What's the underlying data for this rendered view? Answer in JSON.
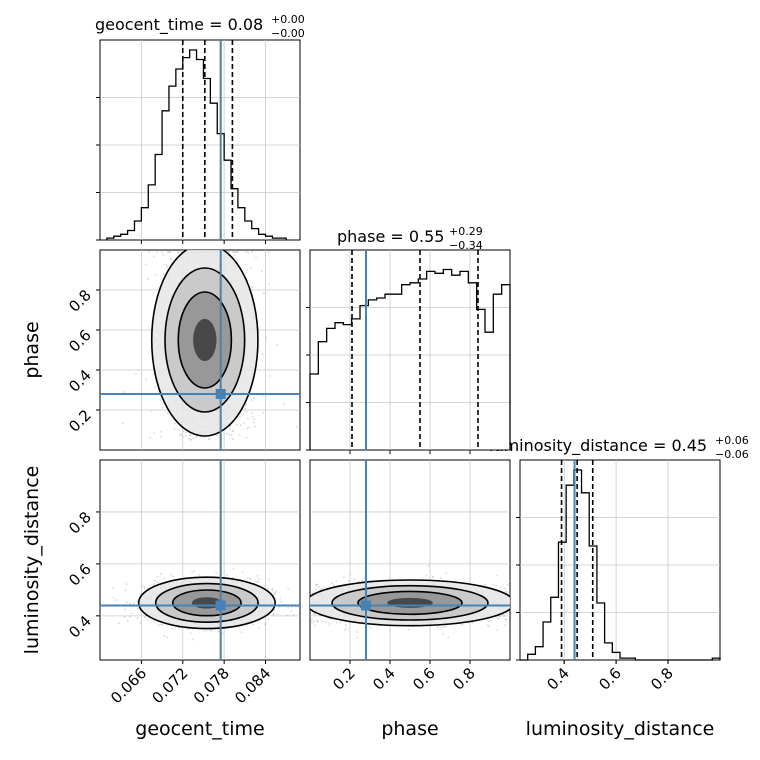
{
  "chart_data": {
    "type": "corner",
    "parameters": [
      {
        "name": "geocent_time",
        "xlabel": "geocent_time",
        "range": [
          0.06,
          0.089
        ],
        "ticks": [
          0.066,
          0.072,
          0.078,
          0.084
        ],
        "tick_labels": [
          "0.066",
          "0.072",
          "0.078",
          "0.084"
        ],
        "title": {
          "text": "geocent_time = 0.08",
          "sup": "+0.00",
          "sub": "−0.00"
        },
        "quantiles": [
          0.072,
          0.0752,
          0.0792
        ],
        "truth": 0.0775,
        "hist_edges_range": [
          0.061,
          0.087
        ],
        "hist": [
          0.01,
          0.02,
          0.03,
          0.05,
          0.1,
          0.17,
          0.29,
          0.45,
          0.68,
          0.81,
          0.9,
          0.96,
          1.0,
          0.95,
          0.85,
          0.72,
          0.56,
          0.42,
          0.27,
          0.17,
          0.1,
          0.06,
          0.03,
          0.02,
          0.01,
          0.01
        ]
      },
      {
        "name": "phase",
        "xlabel": "phase",
        "ylabel": "phase",
        "range": [
          0.0,
          1.0
        ],
        "ticks": [
          0.2,
          0.4,
          0.6,
          0.8
        ],
        "tick_labels": [
          "0.2",
          "0.4",
          "0.6",
          "0.8"
        ],
        "title": {
          "text": "phase = 0.55",
          "sup": "+0.29",
          "sub": "−0.34"
        },
        "quantiles": [
          0.21,
          0.55,
          0.84
        ],
        "truth": 0.28,
        "hist_edges_range": [
          0.0,
          1.0
        ],
        "hist": [
          0.4,
          0.57,
          0.64,
          0.67,
          0.66,
          0.69,
          0.76,
          0.79,
          0.8,
          0.82,
          0.82,
          0.87,
          0.88,
          0.9,
          0.94,
          0.93,
          0.95,
          0.92,
          0.94,
          0.88,
          0.74,
          0.62,
          0.82,
          0.87
        ]
      },
      {
        "name": "luminosity_distance",
        "xlabel": "luminosity_distance",
        "ylabel": "luminosity_distance",
        "range": [
          0.23,
          1.0
        ],
        "ticks": [
          0.4,
          0.6,
          0.8
        ],
        "tick_labels": [
          "0.4",
          "0.6",
          "0.8"
        ],
        "title": {
          "text": "luminosity_distance = 0.45",
          "sup": "+0.06",
          "sub": "−0.06"
        },
        "quantiles": [
          0.39,
          0.45,
          0.51
        ],
        "truth": 0.44,
        "hist_edges_range": [
          0.23,
          1.0
        ],
        "hist": [
          0.0,
          0.03,
          0.07,
          0.2,
          0.33,
          0.62,
          0.92,
          1.0,
          0.88,
          0.6,
          0.3,
          0.09,
          0.04,
          0.01,
          0.01,
          0.0,
          0.0,
          0.0,
          0.0,
          0.0,
          0.0,
          0.0,
          0.0,
          0.0,
          0.0,
          0.01
        ]
      }
    ],
    "pairs": [
      {
        "x": "geocent_time",
        "y": "phase",
        "center": [
          0.0752,
          0.55
        ],
        "spread": [
          0.0035,
          0.3
        ],
        "truth": [
          0.0775,
          0.28
        ]
      },
      {
        "x": "geocent_time",
        "y": "luminosity_distance",
        "center": [
          0.0755,
          0.45
        ],
        "spread": [
          0.0045,
          0.045
        ],
        "truth": [
          0.0775,
          0.44
        ]
      },
      {
        "x": "phase",
        "y": "luminosity_distance",
        "center": [
          0.55,
          0.45
        ],
        "spread": [
          0.35,
          0.04
        ],
        "truth": [
          0.28,
          0.44
        ]
      }
    ],
    "truth_color": "#4682b4",
    "line_color": "#000000",
    "grid": true
  }
}
